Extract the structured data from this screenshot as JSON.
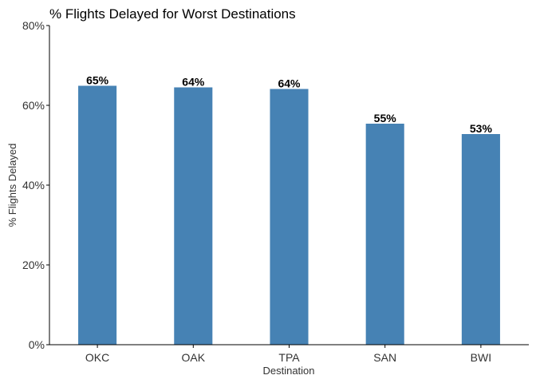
{
  "chart_data": {
    "type": "bar",
    "title": "% Flights Delayed for Worst Destinations",
    "xlabel": "Destination",
    "ylabel": "% Flights Delayed",
    "categories": [
      "OKC",
      "OAK",
      "TPA",
      "SAN",
      "BWI"
    ],
    "values": [
      0.649,
      0.645,
      0.641,
      0.554,
      0.528
    ],
    "data_labels": [
      "65%",
      "64%",
      "64%",
      "55%",
      "53%"
    ],
    "ylim": [
      0,
      0.8
    ],
    "y_ticks": [
      0,
      0.2,
      0.4,
      0.6,
      0.8
    ],
    "y_tick_labels": [
      "0%",
      "20%",
      "40%",
      "60%",
      "80%"
    ],
    "grid": false,
    "legend": "none",
    "bar_color": "#4682B4",
    "axis_color": "#000000"
  }
}
